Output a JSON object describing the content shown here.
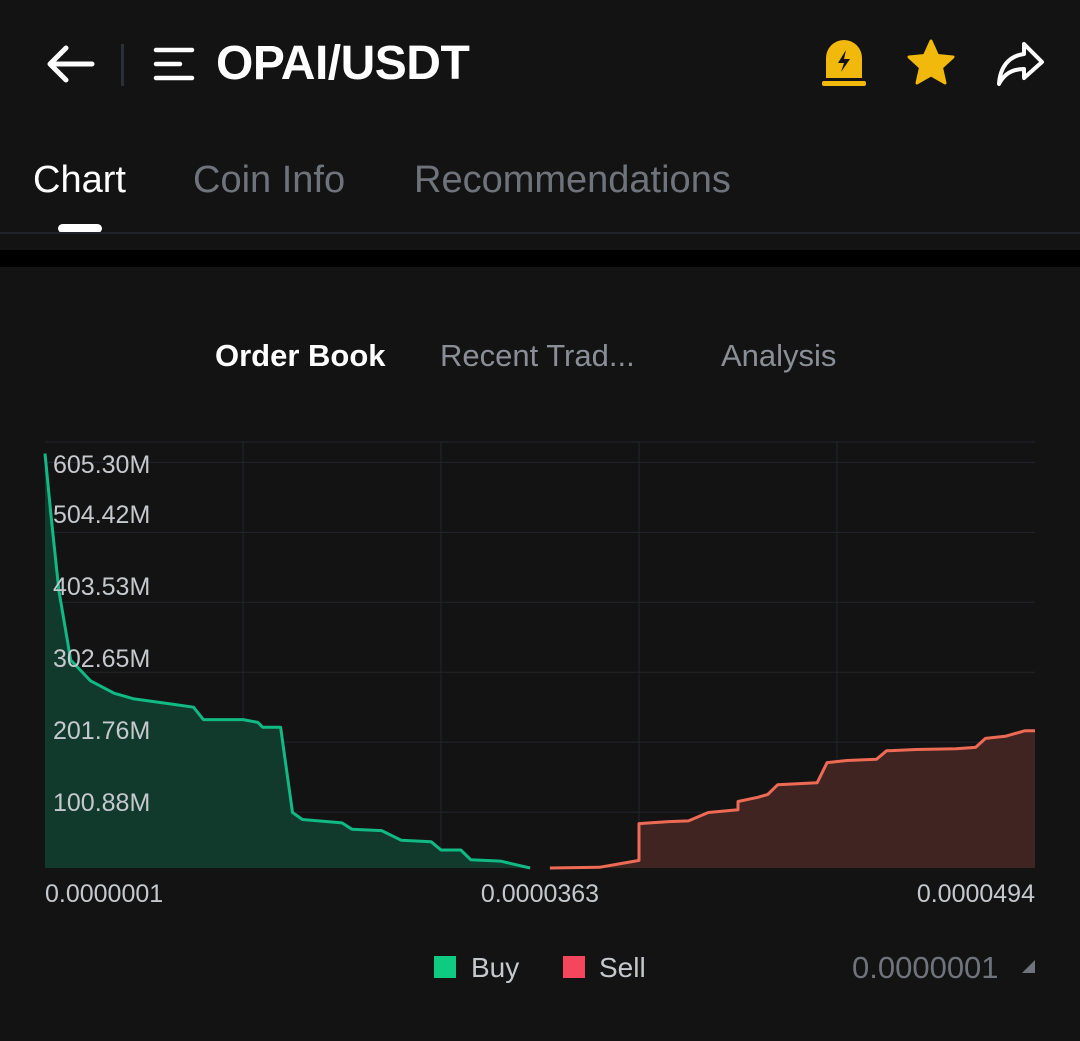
{
  "header": {
    "pair": "OPAI/USDT",
    "accent_color": "#f0b90b"
  },
  "icons": {
    "back": "arrow-left-icon",
    "menu": "menu-icon",
    "alert": "alert-bell-icon",
    "favorite": "star-icon",
    "share": "share-icon",
    "precision_caret": "caret-down-icon"
  },
  "tabs": [
    {
      "label": "Chart",
      "active": true
    },
    {
      "label": "Coin Info",
      "active": false
    },
    {
      "label": "Recommendations",
      "active": false
    }
  ],
  "subtabs": [
    {
      "label": "Order Book",
      "active": true
    },
    {
      "label": "Recent Trad...",
      "active": false
    },
    {
      "label": "Analysis",
      "active": false
    }
  ],
  "legend": {
    "buy": {
      "label": "Buy",
      "color": "#0ecb81"
    },
    "sell": {
      "label": "Sell",
      "color": "#f6465d"
    }
  },
  "precision": "0.0000001",
  "chart_data": {
    "type": "area",
    "title": "",
    "xlabel": "",
    "ylabel": "",
    "y_ticks": [
      "605.30M",
      "504.42M",
      "403.53M",
      "302.65M",
      "201.76M",
      "100.88M"
    ],
    "y_tick_values": [
      605.3,
      504.42,
      403.53,
      302.65,
      201.76,
      100.88
    ],
    "x_ticks": [
      "0.0000001",
      "0.0000363",
      "0.0000494"
    ],
    "ylim": [
      0,
      605.3
    ],
    "legend_position": "bottom",
    "grid": true,
    "series": [
      {
        "name": "Buy",
        "color": "#0ecb81",
        "points": [
          [
            0.0,
            598
          ],
          [
            0.006,
            510
          ],
          [
            0.014,
            400
          ],
          [
            0.026,
            300
          ],
          [
            0.046,
            270
          ],
          [
            0.07,
            252
          ],
          [
            0.09,
            244
          ],
          [
            0.11,
            240
          ],
          [
            0.13,
            236
          ],
          [
            0.15,
            232
          ],
          [
            0.16,
            214
          ],
          [
            0.2,
            214
          ],
          [
            0.215,
            210
          ],
          [
            0.22,
            203
          ],
          [
            0.238,
            203
          ],
          [
            0.25,
            80
          ],
          [
            0.26,
            70
          ],
          [
            0.3,
            65
          ],
          [
            0.31,
            56
          ],
          [
            0.34,
            54
          ],
          [
            0.36,
            40
          ],
          [
            0.39,
            38
          ],
          [
            0.4,
            26
          ],
          [
            0.42,
            26
          ],
          [
            0.43,
            12
          ],
          [
            0.46,
            10
          ],
          [
            0.49,
            0
          ]
        ]
      },
      {
        "name": "Sell",
        "color": "#f6465d",
        "points": [
          [
            0.51,
            0
          ],
          [
            0.56,
            1
          ],
          [
            0.6,
            11
          ],
          [
            0.6,
            64
          ],
          [
            0.63,
            67
          ],
          [
            0.65,
            68
          ],
          [
            0.67,
            80
          ],
          [
            0.7,
            84
          ],
          [
            0.7,
            96
          ],
          [
            0.72,
            102
          ],
          [
            0.73,
            106
          ],
          [
            0.74,
            120
          ],
          [
            0.78,
            123
          ],
          [
            0.79,
            152
          ],
          [
            0.81,
            155
          ],
          [
            0.84,
            157
          ],
          [
            0.85,
            169
          ],
          [
            0.88,
            171
          ],
          [
            0.92,
            172
          ],
          [
            0.94,
            174
          ],
          [
            0.95,
            187
          ],
          [
            0.97,
            190
          ],
          [
            0.99,
            198
          ],
          [
            1.0,
            198
          ]
        ]
      }
    ]
  }
}
